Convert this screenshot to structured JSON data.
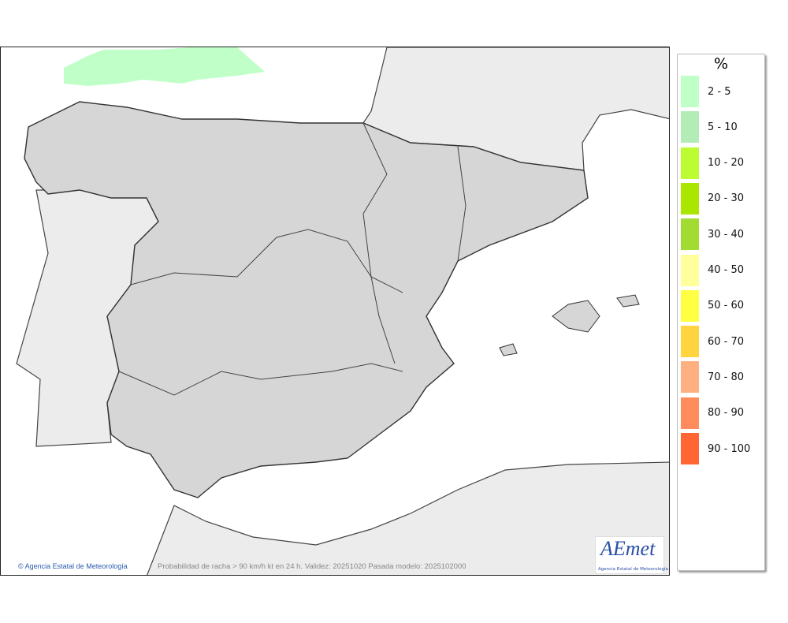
{
  "map": {
    "credit": "Agencia Estatal de Meteorología",
    "caption": "Probabilidad de racha > 90 km/h kt en 24 h. Validez: 20251020 Pasada modelo: 2025102000",
    "logo_text": "AEmet",
    "logo_subtitle": "Agencia Estatal de Meteorología",
    "colors": {
      "sea": "#ffffff",
      "foreign_land": "#ececec",
      "spain_land": "#d6d6d6",
      "probability_area": "#c0ffc8"
    }
  },
  "legend": {
    "unit": "%",
    "items": [
      {
        "label": "2 - 5",
        "color": "#c0ffc8"
      },
      {
        "label": "5 - 10",
        "color": "#b4ecb8"
      },
      {
        "label": "10 - 20",
        "color": "#bcfc32"
      },
      {
        "label": "20 - 30",
        "color": "#aae600"
      },
      {
        "label": "30 - 40",
        "color": "#a2dc32"
      },
      {
        "label": "40 - 50",
        "color": "#ffff9c"
      },
      {
        "label": "50 - 60",
        "color": "#ffff44"
      },
      {
        "label": "60 - 70",
        "color": "#ffd43e"
      },
      {
        "label": "70 - 80",
        "color": "#ffb080"
      },
      {
        "label": "80 - 90",
        "color": "#ff8c5c"
      },
      {
        "label": "90 - 100",
        "color": "#ff6634"
      }
    ]
  }
}
